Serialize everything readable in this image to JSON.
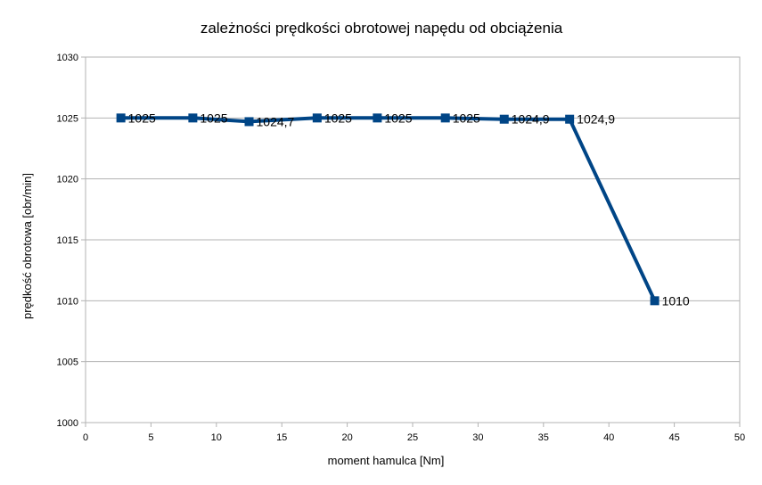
{
  "chart_data": {
    "type": "line",
    "title": "zależności prędkości obrotowej napędu od obciążenia",
    "xlabel": "moment hamulca [Nm]",
    "ylabel": "prędkość obrotowa [obr/min]",
    "xlim": [
      0,
      50
    ],
    "ylim": [
      1000,
      1030
    ],
    "xticks": [
      0,
      5,
      10,
      15,
      20,
      25,
      30,
      35,
      40,
      45,
      50
    ],
    "yticks": [
      1000,
      1005,
      1010,
      1015,
      1020,
      1025,
      1030
    ],
    "grid": "horizontal",
    "legend": "none",
    "color": "#004586",
    "x": [
      2.7,
      8.2,
      12.5,
      17.7,
      22.3,
      27.5,
      32.0,
      37.0,
      43.5
    ],
    "y": [
      1025,
      1025,
      1024.7,
      1025,
      1025,
      1025,
      1024.9,
      1024.9,
      1010
    ],
    "labels": [
      "1025",
      "1025",
      "1024,7",
      "1025",
      "1025",
      "1025",
      "1024,9",
      "1024,9",
      "1010"
    ]
  }
}
